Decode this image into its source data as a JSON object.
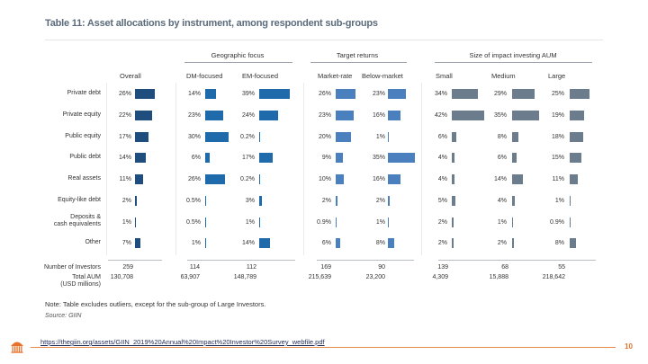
{
  "chart_data": {
    "type": "table",
    "title": "Table 11: Asset allocations by instrument, among respondent sub-groups",
    "groups": [
      {
        "label": "",
        "columns": [
          "Overall"
        ]
      },
      {
        "label": "Geographic focus",
        "columns": [
          "DM-focused",
          "EM-focused"
        ]
      },
      {
        "label": "Target returns",
        "columns": [
          "Market-rate",
          "Below-market"
        ]
      },
      {
        "label": "Size of impact investing AUM",
        "columns": [
          "Small",
          "Medium",
          "Large"
        ]
      }
    ],
    "columns": [
      "Overall",
      "DM-focused",
      "EM-focused",
      "Market-rate",
      "Below-market",
      "Small",
      "Medium",
      "Large"
    ],
    "rows": [
      {
        "label": "Private debt",
        "labels": [
          "26%",
          "14%",
          "39%",
          "26%",
          "23%",
          "34%",
          "29%",
          "25%"
        ],
        "values": [
          26,
          14,
          39,
          26,
          23,
          34,
          29,
          25
        ]
      },
      {
        "label": "Private equity",
        "labels": [
          "22%",
          "23%",
          "24%",
          "23%",
          "16%",
          "42%",
          "35%",
          "19%"
        ],
        "values": [
          22,
          23,
          24,
          23,
          16,
          42,
          35,
          19
        ]
      },
      {
        "label": "Public equity",
        "labels": [
          "17%",
          "30%",
          "0.2%",
          "20%",
          "1%",
          "6%",
          "8%",
          "18%"
        ],
        "values": [
          17,
          30,
          0.2,
          20,
          1,
          6,
          8,
          18
        ]
      },
      {
        "label": "Public debt",
        "labels": [
          "14%",
          "6%",
          "17%",
          "9%",
          "35%",
          "4%",
          "6%",
          "15%"
        ],
        "values": [
          14,
          6,
          17,
          9,
          35,
          4,
          6,
          15
        ]
      },
      {
        "label": "Real assets",
        "labels": [
          "11%",
          "26%",
          "0.2%",
          "10%",
          "16%",
          "4%",
          "14%",
          "11%"
        ],
        "values": [
          11,
          26,
          0.2,
          10,
          16,
          4,
          14,
          11
        ]
      },
      {
        "label": "Equity-like debt",
        "labels": [
          "2%",
          "0.5%",
          "3%",
          "2%",
          "2%",
          "5%",
          "4%",
          "1%"
        ],
        "values": [
          2,
          0.5,
          3,
          2,
          2,
          5,
          4,
          1
        ]
      },
      {
        "label_line1": "Deposits &",
        "label_line2": "cash equivalents",
        "labels": [
          "1%",
          "0.5%",
          "1%",
          "0.9%",
          "1%",
          "2%",
          "1%",
          "0.9%"
        ],
        "values": [
          1,
          0.5,
          1,
          0.9,
          1,
          2,
          1,
          0.9
        ]
      },
      {
        "label": "Other",
        "labels": [
          "7%",
          "1%",
          "14%",
          "6%",
          "8%",
          "2%",
          "2%",
          "8%"
        ],
        "values": [
          7,
          1,
          14,
          6,
          8,
          2,
          2,
          8
        ]
      }
    ],
    "footer": {
      "investors_label": "Number of Investors",
      "investors": [
        "259",
        "114",
        "112",
        "169",
        "90",
        "139",
        "68",
        "55"
      ],
      "aum_label_line1": "Total AUM",
      "aum_label_line2": "(USD millions)",
      "aum": [
        "130,708",
        "63,907",
        "148,789",
        "215,639",
        "23,200",
        "4,309",
        "15,888",
        "218,642"
      ]
    },
    "colors": [
      "#1f4e7e",
      "#1f6aaa",
      "#1f6aaa",
      "#4a80bd",
      "#4a80bd",
      "#6b7d8c",
      "#6b7d8c",
      "#6b7d8c"
    ],
    "xlim": [
      0,
      100
    ]
  },
  "note": "Note: Table excludes outliers, except for the sub-group of Large Investors.",
  "source": "Source: GIIN",
  "footer": {
    "url": "https://thegiin.org/assets/GIIN_2019%20Annual%20Impact%20Investor%20Survey_webfile.pdf",
    "page_number": "10",
    "logo_icon": "rotunda-logo-icon"
  }
}
